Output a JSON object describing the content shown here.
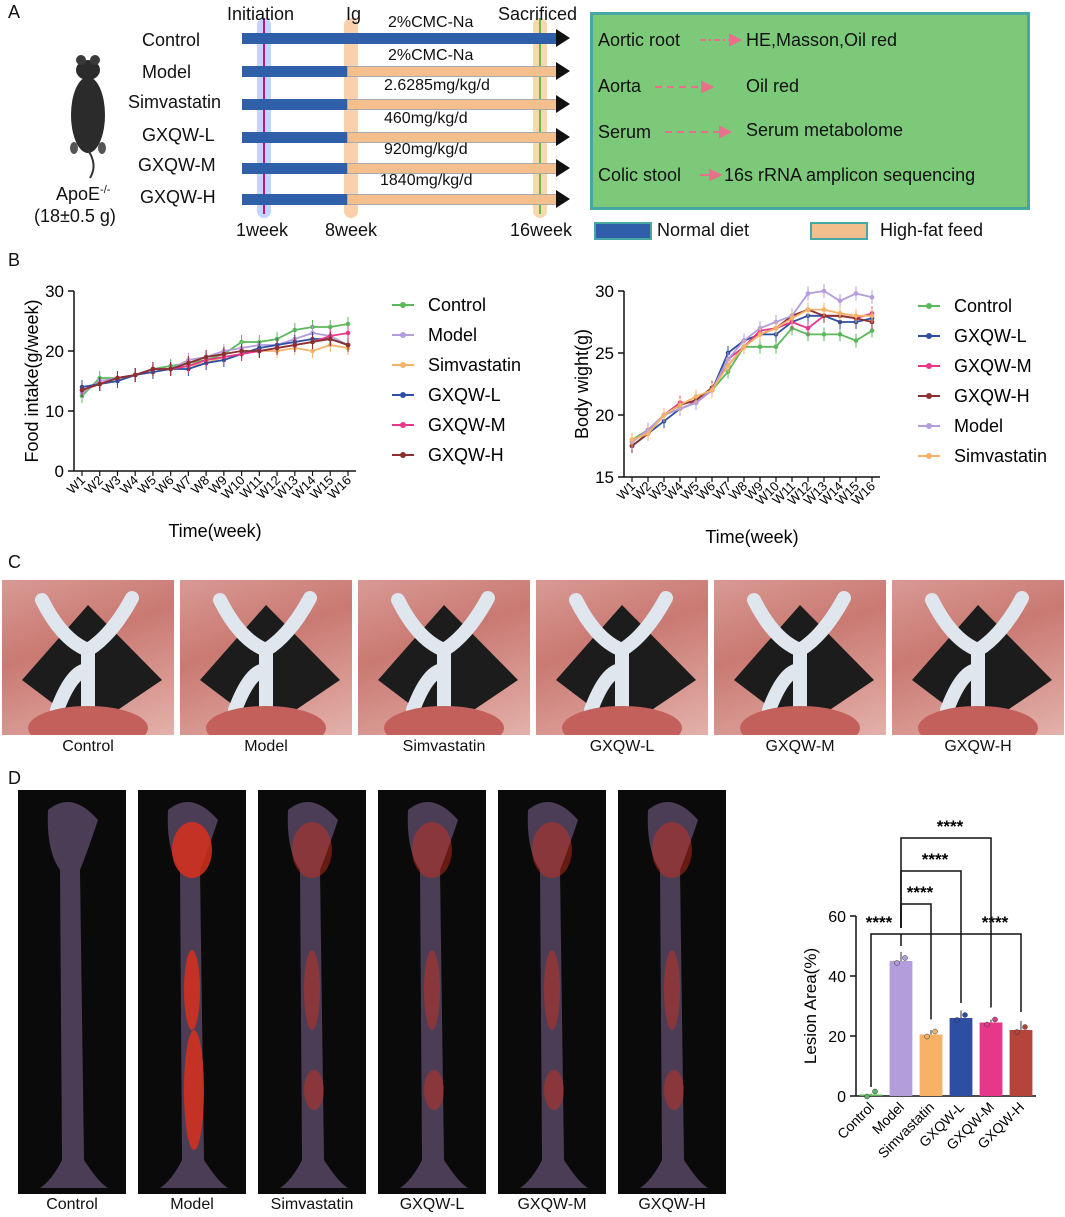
{
  "panel_letters": {
    "a": "A",
    "b": "B",
    "c": "C",
    "d": "D"
  },
  "panelA": {
    "mouse_label": "ApoE",
    "mouse_sup": "-/-",
    "mouse_weight": "(18±0.5 g)",
    "groups": [
      "Control",
      "Model",
      "Simvastatin",
      "GXQW-L",
      "GXQW-M",
      "GXQW-H"
    ],
    "doses": [
      "2%CMC-Na",
      "2%CMC-Na",
      "2.6285mg/kg/d",
      "460mg/kg/d",
      "920mg/kg/d",
      "1840mg/kg/d"
    ],
    "timeline_top": {
      "initiation": "Initiation",
      "ig": "Ig",
      "sacrificed": "Sacrificed"
    },
    "timeline_bottom": {
      "w1": "1week",
      "w8": "8week",
      "w16": "16week"
    },
    "outcomes": [
      {
        "sample": "Aortic root",
        "analysis": "HE,Masson,Oil red"
      },
      {
        "sample": "Aorta",
        "analysis": "Oil red"
      },
      {
        "sample": "Serum",
        "analysis": "Serum metabolome"
      },
      {
        "sample": "Colic stool",
        "analysis": "16s rRNA amplicon sequencing"
      }
    ],
    "legend": {
      "normal": "Normal diet",
      "highfat": "High-fat feed"
    },
    "colors": {
      "normal": "#2f5fa8",
      "highfat": "#f3c08d",
      "box": "#7cc97a",
      "box_border": "#47a7a3",
      "arrow": "#e8708a"
    }
  },
  "chart_data": [
    {
      "type": "line",
      "ylabel": "Food intake(g/week)",
      "xlabel": "Time(week)",
      "ylim": [
        0,
        30
      ],
      "yticks": [
        0,
        10,
        20,
        30
      ],
      "categories": [
        "W1",
        "W2",
        "W3",
        "W4",
        "W5",
        "W6",
        "W7",
        "W8",
        "W9",
        "W10",
        "W11",
        "W12",
        "W13",
        "W14",
        "W15",
        "W16"
      ],
      "legend_position": "right",
      "series": [
        {
          "name": "Control",
          "color": "#5cb85c",
          "values": [
            12.5,
            15.5,
            15.5,
            16,
            17,
            17.5,
            18,
            18.5,
            19.5,
            21.5,
            21.5,
            22,
            23.5,
            24,
            24,
            24.5
          ]
        },
        {
          "name": "Model",
          "color": "#b39ddb",
          "values": [
            13,
            15,
            15.5,
            16,
            17,
            17,
            18.5,
            19,
            20,
            20.5,
            21,
            21,
            22,
            23,
            22.5,
            21
          ]
        },
        {
          "name": "Simvastatin",
          "color": "#f7b267",
          "values": [
            13.5,
            14.5,
            15,
            16,
            16.5,
            17,
            17.5,
            18,
            19,
            19.5,
            20,
            20,
            20.5,
            20,
            21,
            20.5
          ]
        },
        {
          "name": "GXQW-L",
          "color": "#2d4fa3",
          "values": [
            14,
            14.5,
            15,
            16,
            16.5,
            17,
            17,
            18,
            18.5,
            19.5,
            20.5,
            21,
            21.5,
            22,
            22,
            21
          ]
        },
        {
          "name": "GXQW-M",
          "color": "#e8378b",
          "values": [
            13.5,
            14.5,
            15.5,
            16,
            17,
            17,
            17.5,
            18.5,
            19,
            19.5,
            20,
            20.5,
            21,
            21.5,
            22.5,
            23
          ]
        },
        {
          "name": "GXQW-H",
          "color": "#8b2f2f",
          "values": [
            13.5,
            14.5,
            15.5,
            16,
            17,
            17,
            18,
            19,
            19.5,
            20,
            20,
            20.5,
            21,
            21.5,
            22,
            21
          ]
        }
      ]
    },
    {
      "type": "line",
      "ylabel": "Body wight(g)",
      "xlabel": "Time(week)",
      "ylim": [
        15,
        30
      ],
      "yticks": [
        15,
        20,
        25,
        30
      ],
      "categories": [
        "W1",
        "W2",
        "W3",
        "W4",
        "W5",
        "W6",
        "W7",
        "W8",
        "W9",
        "W10",
        "W11",
        "W12",
        "W13",
        "W14",
        "W15",
        "W16"
      ],
      "legend_position": "right",
      "series": [
        {
          "name": "Control",
          "color": "#5cb85c",
          "values": [
            18,
            18.8,
            20,
            20.5,
            21,
            22,
            23.5,
            25.5,
            25.5,
            25.5,
            27,
            26.5,
            26.5,
            26.5,
            26,
            26.8
          ]
        },
        {
          "name": "GXQW-L",
          "color": "#2d4fa3",
          "values": [
            17.5,
            18.5,
            19.5,
            20.5,
            21,
            22,
            25,
            26,
            26.5,
            26.5,
            27.5,
            28,
            28,
            27.5,
            27.5,
            27.8
          ]
        },
        {
          "name": "GXQW-M",
          "color": "#e8378b",
          "values": [
            17.8,
            18.8,
            20,
            21,
            21,
            22,
            24.5,
            25.5,
            26.8,
            27,
            27.5,
            27,
            28,
            28,
            27.8,
            28.2
          ]
        },
        {
          "name": "GXQW-H",
          "color": "#8b2f2f",
          "values": [
            17.5,
            18.5,
            20,
            20.8,
            21.2,
            22.2,
            24,
            25.5,
            26.5,
            27,
            28,
            28.5,
            28,
            28,
            27.8,
            27.5
          ]
        },
        {
          "name": "Model",
          "color": "#b39ddb",
          "values": [
            17.8,
            18.8,
            20,
            20.5,
            21,
            22,
            24.5,
            26,
            27,
            27.5,
            28,
            29.8,
            30,
            29.2,
            29.8,
            29.5
          ]
        },
        {
          "name": "Simvastatin",
          "color": "#f7b267",
          "values": [
            18,
            18.5,
            20,
            20.8,
            21.5,
            22,
            24,
            25.5,
            26.5,
            27,
            27.8,
            28.5,
            28.5,
            28.2,
            28,
            28
          ]
        }
      ]
    },
    {
      "type": "bar",
      "ylabel": "Lesion Area(%)",
      "categories": [
        "Control",
        "Model",
        "Simvastatin",
        "GXQW-L",
        "GXQW-M",
        "GXQW-H"
      ],
      "values": [
        0.5,
        45,
        20.5,
        26,
        24.5,
        22
      ],
      "errors": [
        0.3,
        3,
        1.5,
        2.5,
        1,
        3
      ],
      "colors": [
        "#5cb85c",
        "#b39ddb",
        "#f7b267",
        "#2d4fa3",
        "#e8378b",
        "#b5443a"
      ],
      "ylim": [
        0,
        60
      ],
      "yticks": [
        0,
        20,
        40,
        60
      ],
      "significance": [
        "****",
        "****",
        "****",
        "****",
        "****"
      ]
    }
  ],
  "panelC": {
    "captions": [
      "Control",
      "Model",
      "Simvastatin",
      "GXQW-L",
      "GXQW-M",
      "GXQW-H"
    ]
  },
  "panelD": {
    "captions": [
      "Control",
      "Model",
      "Simvastatin",
      "GXQW-L",
      "GXQW-M",
      "GXQW-H"
    ]
  }
}
